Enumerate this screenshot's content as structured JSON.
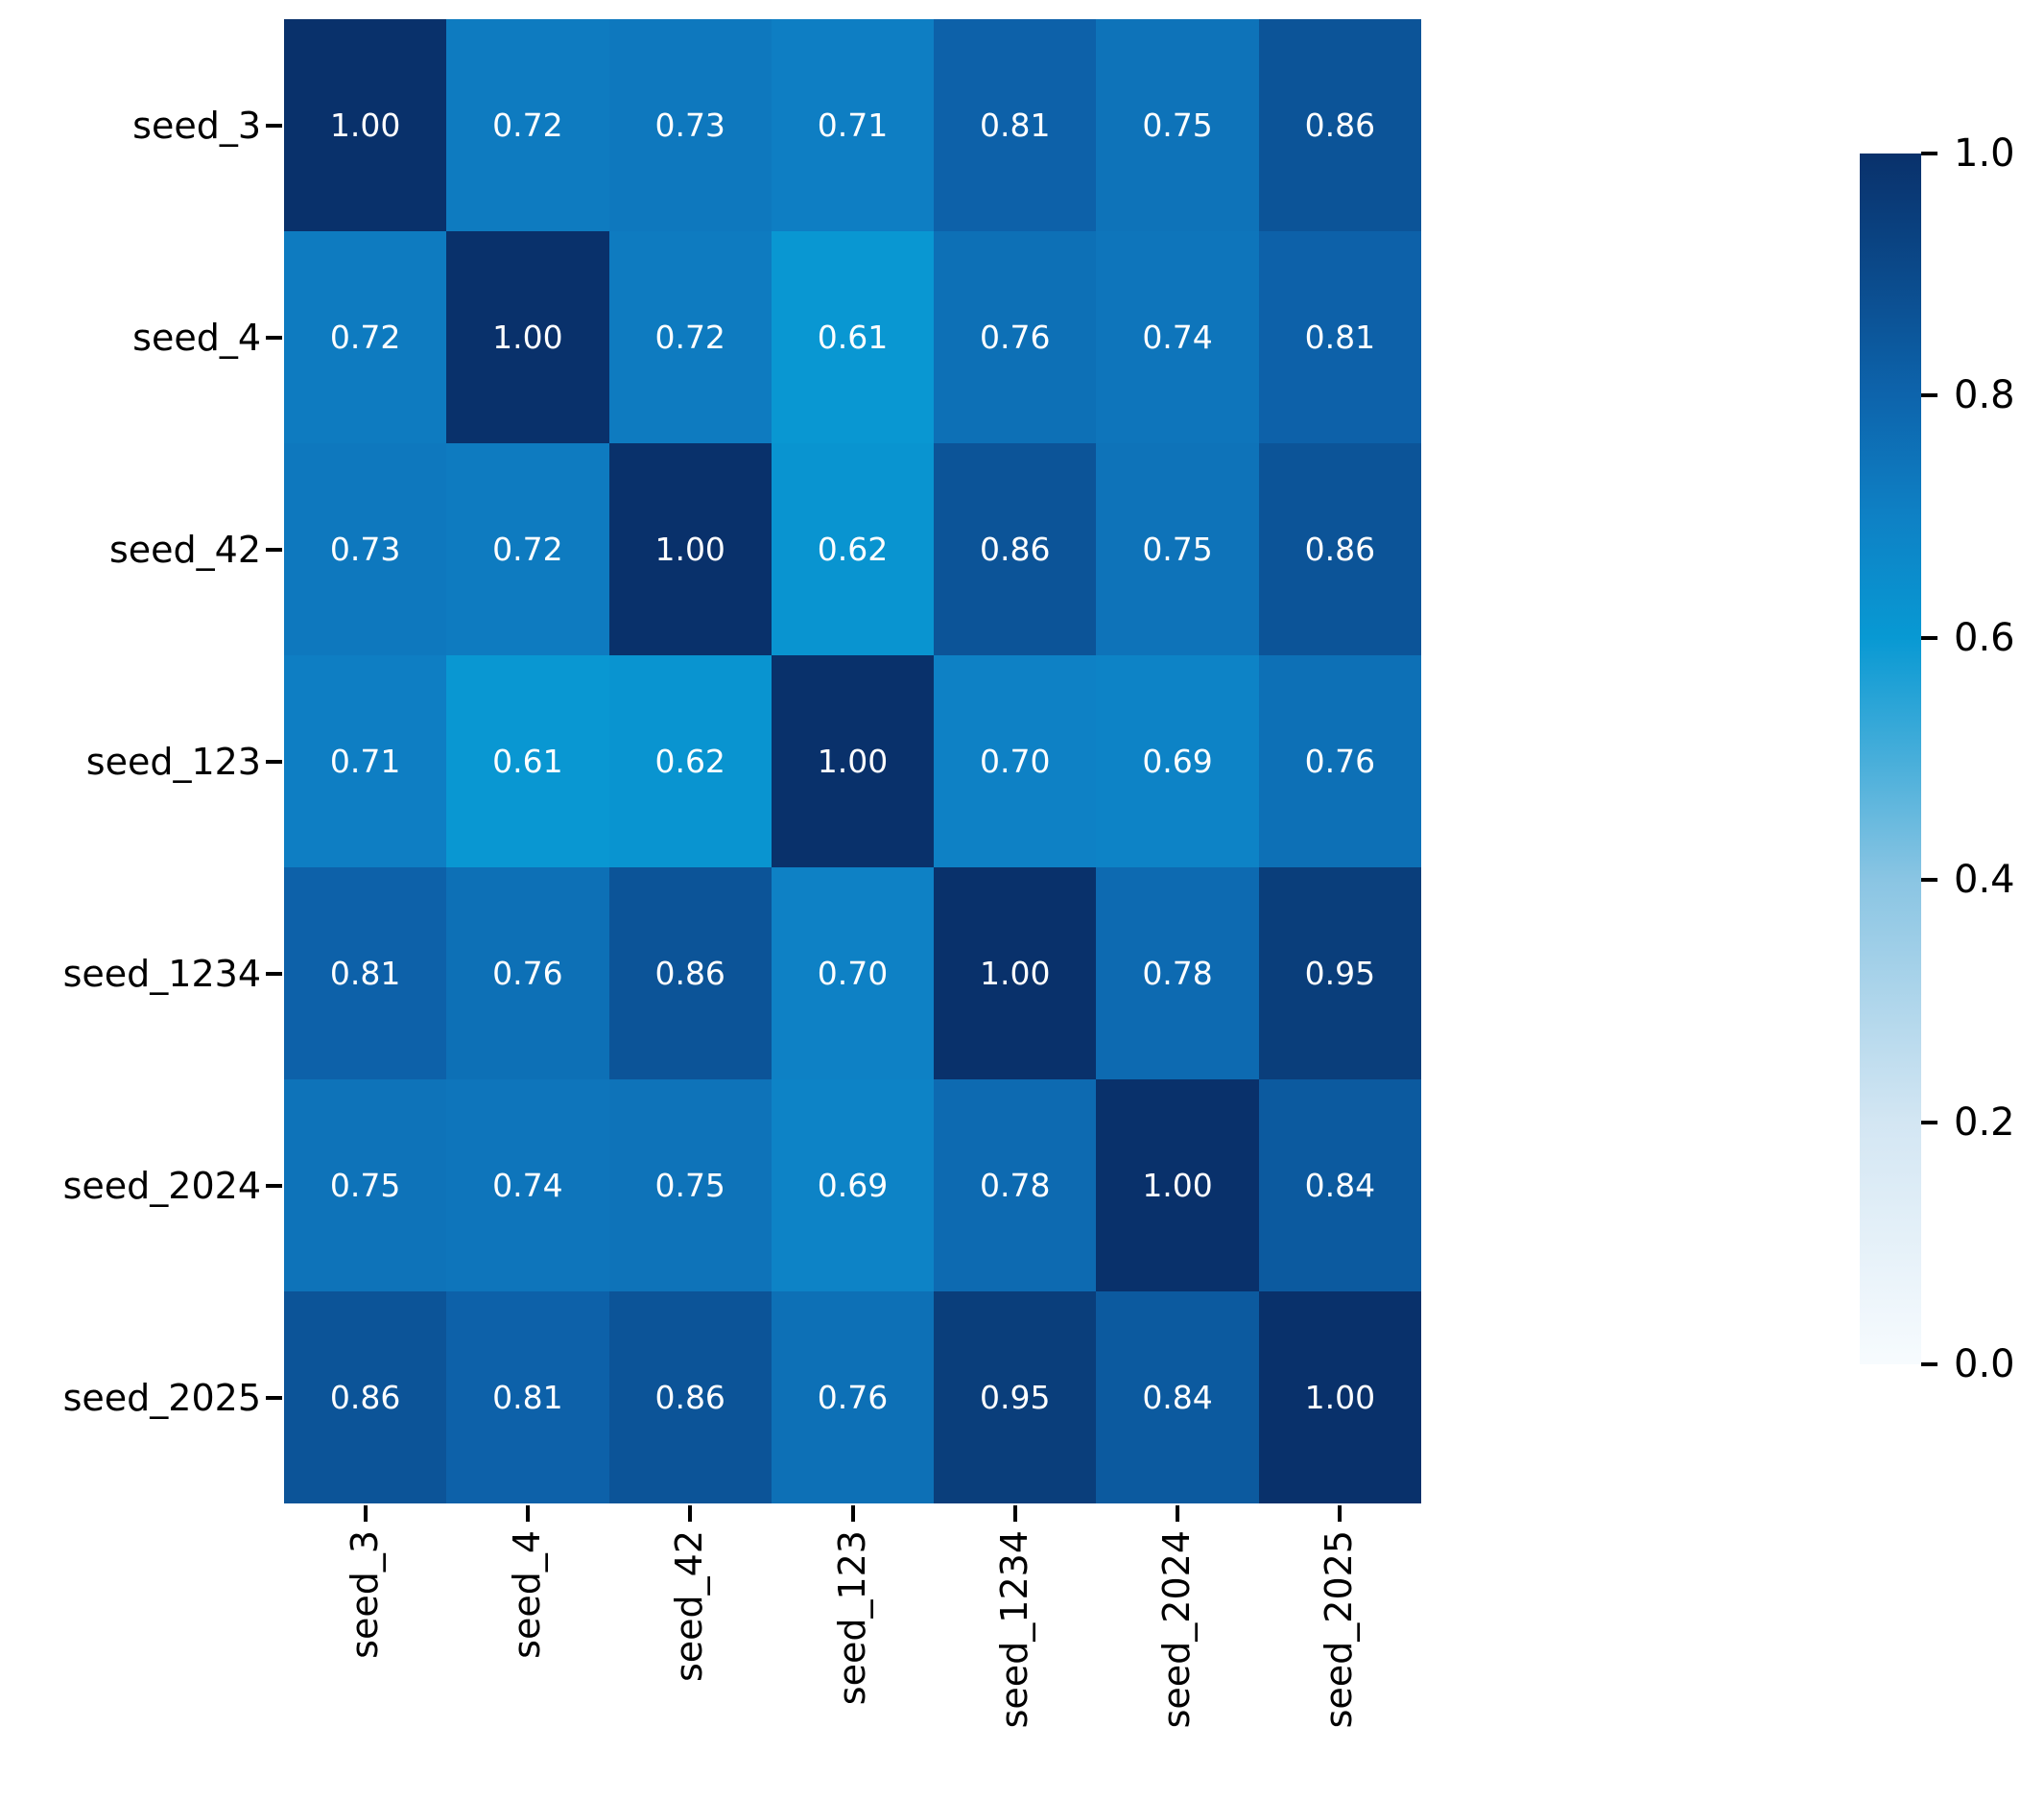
{
  "chart_data": {
    "type": "heatmap",
    "title": "",
    "xlabel": "",
    "ylabel": "",
    "categories": [
      "seed_3",
      "seed_4",
      "seed_42",
      "seed_123",
      "seed_1234",
      "seed_2024",
      "seed_2025"
    ],
    "matrix": [
      [
        1.0,
        0.72,
        0.73,
        0.71,
        0.81,
        0.75,
        0.86
      ],
      [
        0.72,
        1.0,
        0.72,
        0.61,
        0.76,
        0.74,
        0.81
      ],
      [
        0.73,
        0.72,
        1.0,
        0.62,
        0.86,
        0.75,
        0.86
      ],
      [
        0.71,
        0.61,
        0.62,
        1.0,
        0.7,
        0.69,
        0.76
      ],
      [
        0.81,
        0.76,
        0.86,
        0.7,
        1.0,
        0.78,
        0.95
      ],
      [
        0.75,
        0.74,
        0.75,
        0.69,
        0.78,
        1.0,
        0.84
      ],
      [
        0.86,
        0.81,
        0.86,
        0.76,
        0.95,
        0.84,
        1.0
      ]
    ],
    "value_decimals": 2,
    "annotation_text_color": "#ffffff",
    "axis_text_color": "#000000",
    "grid": false,
    "legend_position": "right-colorbar",
    "colorbar": {
      "min": 0.0,
      "max": 1.0,
      "tick_labels": [
        "1.0",
        "0.8",
        "0.6",
        "0.4",
        "0.2",
        "0.0"
      ]
    },
    "colormap_stops": [
      {
        "v": 0.0,
        "c": "#f7fbfe"
      },
      {
        "v": 0.2,
        "c": "#d3e6f3"
      },
      {
        "v": 0.4,
        "c": "#8ac5e3"
      },
      {
        "v": 0.5,
        "c": "#47aeda"
      },
      {
        "v": 0.6,
        "c": "#0899d3"
      },
      {
        "v": 0.7,
        "c": "#0e81c5"
      },
      {
        "v": 0.8,
        "c": "#0d64ac"
      },
      {
        "v": 0.9,
        "c": "#0b4a8b"
      },
      {
        "v": 1.0,
        "c": "#09316b"
      }
    ]
  }
}
